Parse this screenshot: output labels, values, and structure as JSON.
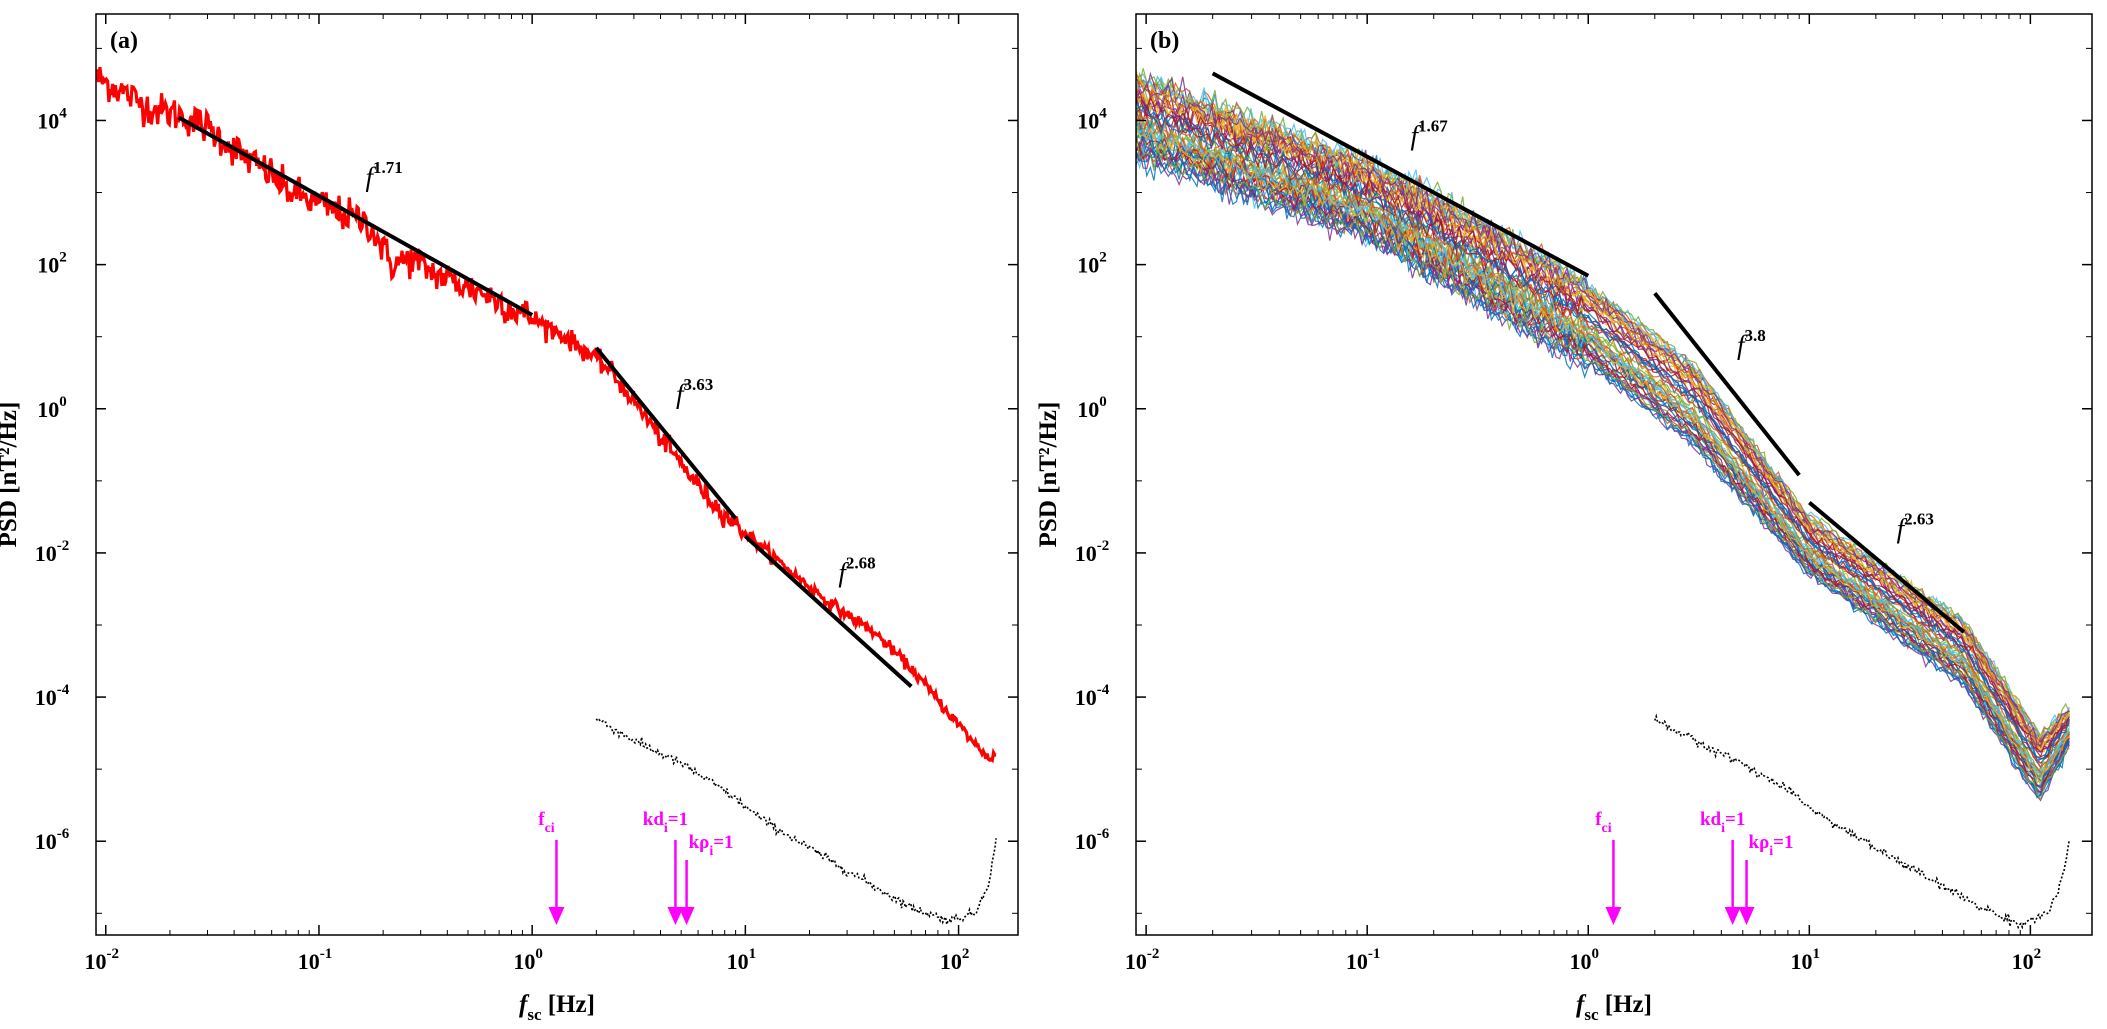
{
  "chart_data": [
    {
      "panel_label": "(a)",
      "type": "line",
      "x_scale": "log",
      "y_scale": "log",
      "xlim": [
        0.009,
        190
      ],
      "ylim": [
        5e-08,
        300000.0
      ],
      "xlabel_main": "f",
      "xlabel_sub": "sc",
      "xlabel_unit": " [Hz]",
      "ylabel": "PSD [nT²/Hz]",
      "x_tick_labels": [
        {
          "base": "10",
          "exp": "-2"
        },
        {
          "base": "10",
          "exp": "-1"
        },
        {
          "base": "10",
          "exp": "0"
        },
        {
          "base": "10",
          "exp": "1"
        },
        {
          "base": "10",
          "exp": "2"
        }
      ],
      "y_tick_labels": [
        {
          "base": "10",
          "exp": "4"
        },
        {
          "base": "10",
          "exp": "2"
        },
        {
          "base": "10",
          "exp": "0"
        },
        {
          "base": "10",
          "exp": "-2"
        },
        {
          "base": "10",
          "exp": "-4"
        },
        {
          "base": "10",
          "exp": "-6"
        }
      ],
      "spectrum_color": "#ff0000",
      "spectrum": [
        [
          0.009,
          40000
        ],
        [
          0.012,
          25000
        ],
        [
          0.016,
          15000
        ],
        [
          0.022,
          12000
        ],
        [
          0.03,
          8000
        ],
        [
          0.04,
          4000
        ],
        [
          0.05,
          2500
        ],
        [
          0.06,
          1800
        ],
        [
          0.07,
          1100
        ],
        [
          0.1,
          700
        ],
        [
          0.13,
          500
        ],
        [
          0.17,
          380
        ],
        [
          0.22,
          100
        ],
        [
          0.27,
          120
        ],
        [
          0.35,
          75
        ],
        [
          0.45,
          55
        ],
        [
          0.6,
          40
        ],
        [
          0.8,
          25
        ],
        [
          1.0,
          18
        ],
        [
          1.3,
          12
        ],
        [
          1.7,
          7
        ],
        [
          2.3,
          3.5
        ],
        [
          3.0,
          1.3
        ],
        [
          4.0,
          0.4
        ],
        [
          5.5,
          0.12
        ],
        [
          7.0,
          0.05
        ],
        [
          9.0,
          0.025
        ],
        [
          12,
          0.012
        ],
        [
          17,
          0.005
        ],
        [
          25,
          0.002
        ],
        [
          40,
          0.0008
        ],
        [
          60,
          0.00025
        ],
        [
          90,
          6e-05
        ],
        [
          120,
          2.2e-05
        ],
        [
          140,
          1.4e-05
        ],
        [
          150,
          1.6e-05
        ]
      ],
      "noise": [
        [
          2.0,
          5e-05
        ],
        [
          3.0,
          2.5e-05
        ],
        [
          5.0,
          1.2e-05
        ],
        [
          8.0,
          5e-06
        ],
        [
          12,
          2e-06
        ],
        [
          20,
          8e-07
        ],
        [
          35,
          3e-07
        ],
        [
          60,
          1.2e-07
        ],
        [
          90,
          8e-08
        ],
        [
          120,
          1e-07
        ],
        [
          140,
          3e-07
        ],
        [
          150,
          1e-06
        ]
      ],
      "fits": [
        {
          "label_base": "f",
          "label_exp": "1.71",
          "x0": 0.022,
          "y0": 11000,
          "x1": 1.0,
          "y1": 20
        },
        {
          "label_base": "f",
          "label_exp": "3.63",
          "x0": 2.0,
          "y0": 7,
          "x1": 9.0,
          "y1": 0.03
        },
        {
          "label_base": "f",
          "label_exp": "2.68",
          "x0": 10,
          "y0": 0.017,
          "x1": 60,
          "y1": 0.00014
        }
      ],
      "markers": [
        {
          "label": "f",
          "sub": "ci",
          "tail": "",
          "x": 1.3
        },
        {
          "label": "kd",
          "sub": "i",
          "tail": "=1",
          "x": 4.7
        },
        {
          "label": "kρ",
          "sub": "i",
          "tail": "=1",
          "x": 5.3
        }
      ]
    },
    {
      "panel_label": "(b)",
      "type": "line",
      "x_scale": "log",
      "y_scale": "log",
      "xlim": [
        0.009,
        190
      ],
      "ylim": [
        5e-08,
        300000.0
      ],
      "xlabel_main": "f",
      "xlabel_sub": "sc",
      "xlabel_unit": " [Hz]",
      "ylabel": "PSD [nT²/Hz]",
      "x_tick_labels": [
        {
          "base": "10",
          "exp": "-2"
        },
        {
          "base": "10",
          "exp": "-1"
        },
        {
          "base": "10",
          "exp": "0"
        },
        {
          "base": "10",
          "exp": "1"
        },
        {
          "base": "10",
          "exp": "2"
        }
      ],
      "y_tick_labels": [
        {
          "base": "10",
          "exp": "4"
        },
        {
          "base": "10",
          "exp": "2"
        },
        {
          "base": "10",
          "exp": "0"
        },
        {
          "base": "10",
          "exp": "-2"
        },
        {
          "base": "10",
          "exp": "-4"
        },
        {
          "base": "10",
          "exp": "-6"
        }
      ],
      "ensemble": {
        "count": 60,
        "colors": [
          "#0072bd",
          "#d95319",
          "#edb120",
          "#7e2f8e",
          "#77ac30",
          "#4dbeee",
          "#a2142f"
        ],
        "baseline": [
          [
            0.009,
            30000
          ],
          [
            0.02,
            12000
          ],
          [
            0.05,
            3000
          ],
          [
            0.1,
            1200
          ],
          [
            0.2,
            400
          ],
          [
            0.5,
            90
          ],
          [
            1.0,
            30
          ],
          [
            1.5,
            15
          ],
          [
            2.0,
            8
          ],
          [
            3.0,
            2
          ],
          [
            4.0,
            0.5
          ],
          [
            5.0,
            0.15
          ],
          [
            7.0,
            0.04
          ],
          [
            10,
            0.015
          ],
          [
            20,
            0.003
          ],
          [
            40,
            0.0006
          ],
          [
            70,
            0.00015
          ],
          [
            100,
            4e-05
          ],
          [
            120,
            1.2e-05
          ],
          [
            130,
            8e-06
          ],
          [
            150,
            2.5e-05
          ]
        ],
        "spread_low": [
          [
            0.009,
            1500
          ],
          [
            0.1,
            120
          ],
          [
            0.5,
            6
          ],
          [
            1.0,
            2
          ],
          [
            3.0,
            0.15
          ],
          [
            10,
            0.003
          ],
          [
            50,
            8e-05
          ],
          [
            110,
            2e-06
          ],
          [
            150,
            1.5e-05
          ]
        ],
        "spread_high": [
          [
            0.009,
            80000
          ],
          [
            0.1,
            5000
          ],
          [
            0.5,
            400
          ],
          [
            1.0,
            100
          ],
          [
            3.0,
            8
          ],
          [
            10,
            0.05
          ],
          [
            50,
            0.002
          ],
          [
            110,
            5e-05
          ],
          [
            150,
            0.0001
          ]
        ]
      },
      "noise": [
        [
          2.0,
          5e-05
        ],
        [
          3.0,
          2.5e-05
        ],
        [
          5.0,
          1.2e-05
        ],
        [
          8.0,
          5e-06
        ],
        [
          12,
          2e-06
        ],
        [
          20,
          8e-07
        ],
        [
          35,
          3e-07
        ],
        [
          60,
          1.2e-07
        ],
        [
          90,
          7e-08
        ],
        [
          120,
          1e-07
        ],
        [
          140,
          3e-07
        ],
        [
          150,
          1e-06
        ]
      ],
      "fits": [
        {
          "label_base": "f",
          "label_exp": "1.67",
          "x0": 0.02,
          "y0": 45000,
          "x1": 1.0,
          "y1": 70
        },
        {
          "label_base": "f",
          "label_exp": "3.8",
          "x0": 2.0,
          "y0": 40,
          "x1": 9.0,
          "y1": 0.12
        },
        {
          "label_base": "f",
          "label_exp": "2.63",
          "x0": 10,
          "y0": 0.05,
          "x1": 50,
          "y1": 0.0008
        }
      ],
      "markers": [
        {
          "label": "f",
          "sub": "ci",
          "tail": "",
          "x": 1.3
        },
        {
          "label": "kd",
          "sub": "i",
          "tail": "=1",
          "x": 4.5
        },
        {
          "label": "kρ",
          "sub": "i",
          "tail": "=1",
          "x": 5.2
        }
      ]
    }
  ]
}
